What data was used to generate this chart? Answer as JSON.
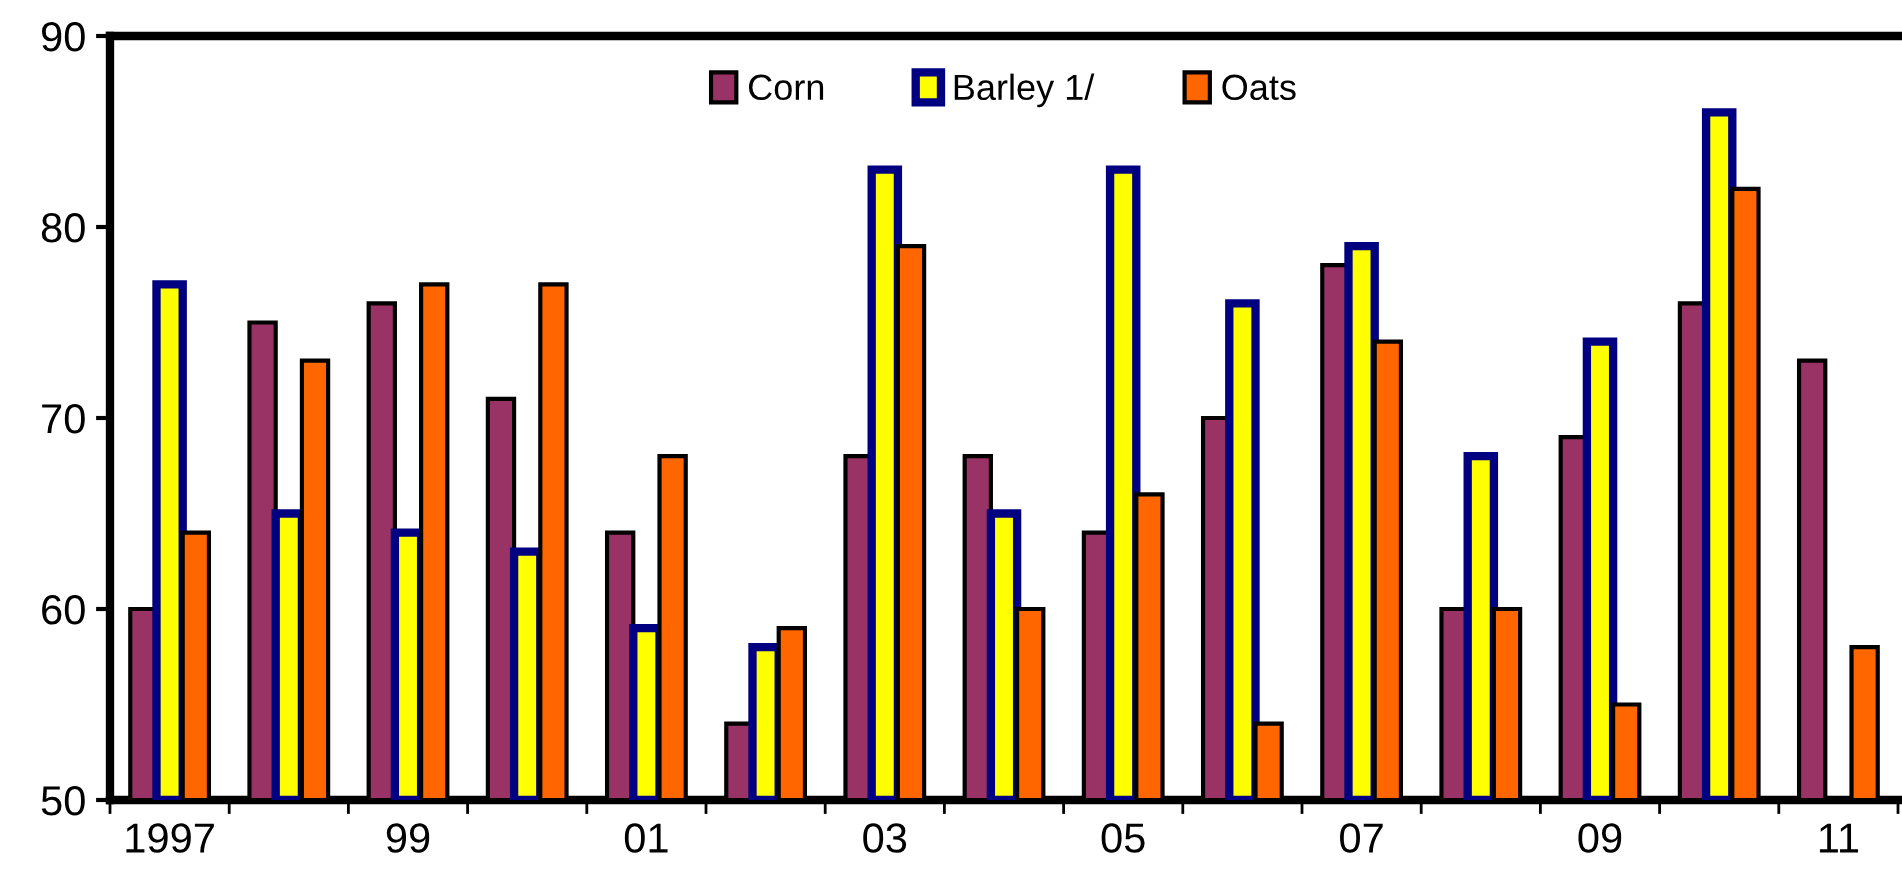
{
  "chart_data": {
    "type": "bar",
    "categories": [
      "1997",
      null,
      "99",
      null,
      "01",
      null,
      "03",
      null,
      "05",
      null,
      "07",
      null,
      "09",
      null,
      "11"
    ],
    "series": [
      {
        "name": "Corn",
        "color": "#993366",
        "values": [
          60,
          75,
          76,
          71,
          64,
          54,
          68,
          68,
          64,
          70,
          78,
          60,
          69,
          76,
          73
        ]
      },
      {
        "name": "Barley 1/",
        "color": "#ffff00",
        "values": [
          77,
          65,
          64,
          63,
          59,
          58,
          83,
          65,
          83,
          76,
          79,
          68,
          74,
          86,
          null
        ]
      },
      {
        "name": "Oats",
        "color": "#ff6600",
        "values": [
          64,
          73,
          77,
          77,
          68,
          59,
          79,
          60,
          66,
          54,
          74,
          60,
          55,
          82,
          58
        ]
      }
    ],
    "ylim": [
      50,
      90
    ],
    "yticks": [
      50,
      60,
      70,
      80,
      90
    ],
    "grid": false,
    "legend": "top"
  }
}
